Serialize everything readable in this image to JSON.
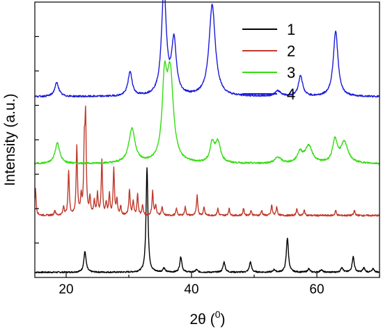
{
  "chart_data": {
    "type": "line",
    "xlabel": "2θ (",
    "xlabel_unit": "0",
    "xlabel_close": ")",
    "ylabel": "Intensity (a.u.)",
    "xlim": [
      15,
      70
    ],
    "ylim": [
      0,
      16
    ],
    "x_ticks": [
      20,
      40,
      60
    ],
    "x_tick_labels": [
      "20",
      "40",
      "60"
    ],
    "y_ticks": [
      2,
      4,
      6,
      8,
      10,
      12,
      14
    ],
    "y_tick_labels": [],
    "legend_position": "top-right",
    "series": [
      {
        "name": "1",
        "color": "#000000",
        "baseline": 0.3,
        "noise": 0.04,
        "peaks": [
          [
            23.0,
            1.2,
            0.22
          ],
          [
            32.9,
            6.1,
            0.18
          ],
          [
            35.6,
            0.25,
            0.2
          ],
          [
            38.3,
            0.9,
            0.2
          ],
          [
            40.8,
            0.15,
            0.2
          ],
          [
            45.2,
            0.6,
            0.2
          ],
          [
            49.4,
            0.6,
            0.2
          ],
          [
            53.2,
            0.15,
            0.2
          ],
          [
            55.3,
            2.0,
            0.2
          ],
          [
            58.7,
            0.2,
            0.2
          ],
          [
            60.7,
            0.15,
            0.2
          ],
          [
            64.0,
            0.3,
            0.2
          ],
          [
            65.8,
            0.9,
            0.2
          ],
          [
            67.5,
            0.25,
            0.2
          ],
          [
            69.0,
            0.2,
            0.2
          ]
        ]
      },
      {
        "name": "2",
        "color": "#c0392b",
        "baseline": 3.6,
        "noise": 0.05,
        "peaks": [
          [
            15.1,
            1.6,
            0.12
          ],
          [
            18.2,
            0.3,
            0.12
          ],
          [
            19.6,
            0.5,
            0.12
          ],
          [
            20.4,
            2.6,
            0.12
          ],
          [
            21.7,
            4.0,
            0.12
          ],
          [
            22.4,
            1.0,
            0.12
          ],
          [
            22.9,
            3.6,
            0.12
          ],
          [
            23.1,
            5.3,
            0.12
          ],
          [
            23.8,
            1.0,
            0.12
          ],
          [
            24.5,
            0.8,
            0.12
          ],
          [
            25.0,
            1.2,
            0.12
          ],
          [
            25.7,
            3.2,
            0.12
          ],
          [
            26.4,
            0.7,
            0.12
          ],
          [
            26.9,
            1.2,
            0.12
          ],
          [
            27.6,
            2.7,
            0.12
          ],
          [
            28.1,
            0.9,
            0.12
          ],
          [
            28.7,
            0.5,
            0.12
          ],
          [
            30.1,
            1.5,
            0.12
          ],
          [
            30.7,
            0.8,
            0.12
          ],
          [
            31.4,
            1.2,
            0.12
          ],
          [
            32.2,
            0.6,
            0.12
          ],
          [
            33.8,
            1.4,
            0.12
          ],
          [
            34.3,
            0.6,
            0.12
          ],
          [
            35.3,
            0.5,
            0.12
          ],
          [
            37.6,
            0.4,
            0.12
          ],
          [
            39.0,
            0.5,
            0.12
          ],
          [
            40.9,
            1.2,
            0.12
          ],
          [
            42.0,
            0.5,
            0.12
          ],
          [
            44.2,
            0.4,
            0.12
          ],
          [
            46.0,
            0.4,
            0.12
          ],
          [
            48.3,
            0.4,
            0.12
          ],
          [
            49.5,
            0.3,
            0.12
          ],
          [
            51.2,
            0.3,
            0.12
          ],
          [
            52.8,
            0.6,
            0.12
          ],
          [
            53.6,
            0.5,
            0.12
          ],
          [
            56.8,
            0.4,
            0.12
          ],
          [
            58.0,
            0.3,
            0.12
          ],
          [
            63.0,
            0.3,
            0.12
          ],
          [
            66.0,
            0.3,
            0.12
          ]
        ]
      },
      {
        "name": "3",
        "color": "#33dd11",
        "baseline": 6.6,
        "noise": 0.05,
        "peaks": [
          [
            18.6,
            1.2,
            0.45
          ],
          [
            30.5,
            2.0,
            0.6
          ],
          [
            35.7,
            4.3,
            0.45
          ],
          [
            36.6,
            5.0,
            0.6
          ],
          [
            43.3,
            1.1,
            0.4
          ],
          [
            44.2,
            1.2,
            0.5
          ],
          [
            53.8,
            0.35,
            0.6
          ],
          [
            57.3,
            0.6,
            0.5
          ],
          [
            58.7,
            1.0,
            0.7
          ],
          [
            62.9,
            1.3,
            0.45
          ],
          [
            64.4,
            1.2,
            0.7
          ]
        ]
      },
      {
        "name": "4",
        "color": "#1a1adb",
        "baseline": 10.5,
        "noise": 0.05,
        "peaks": [
          [
            18.5,
            0.8,
            0.4
          ],
          [
            30.2,
            1.4,
            0.4
          ],
          [
            35.6,
            6.2,
            0.45
          ],
          [
            37.2,
            3.1,
            0.45
          ],
          [
            43.3,
            5.3,
            0.6
          ],
          [
            53.8,
            0.3,
            0.6
          ],
          [
            57.4,
            1.2,
            0.4
          ],
          [
            63.0,
            3.8,
            0.45
          ]
        ]
      }
    ]
  }
}
